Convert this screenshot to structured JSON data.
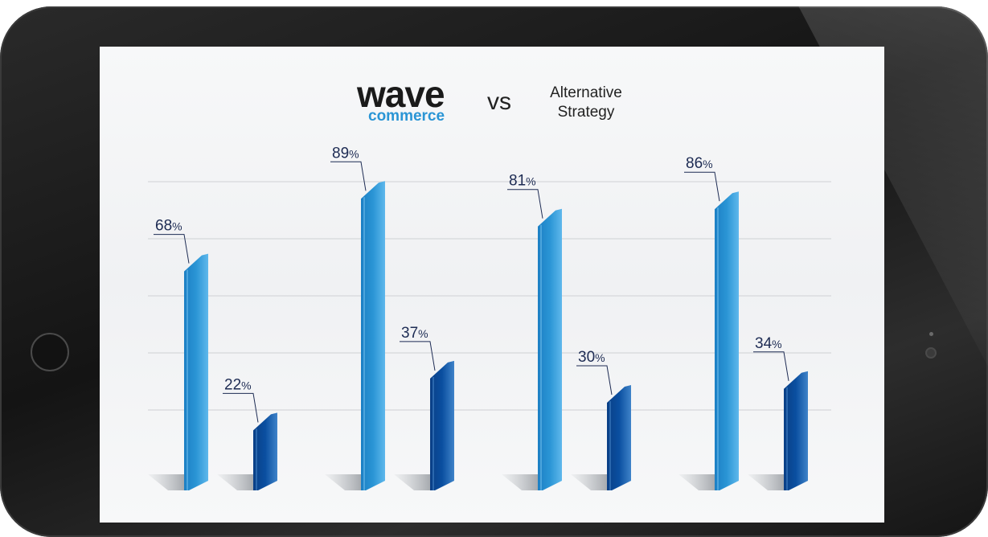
{
  "title": {
    "brand_main": "wave",
    "brand_sub": "commerce",
    "vs": "vs",
    "alt_line1": "Alternative",
    "alt_line2": "Strategy"
  },
  "chart_data": {
    "type": "bar",
    "categories": [
      "",
      "",
      "",
      ""
    ],
    "series": [
      {
        "name": "wave commerce",
        "values": [
          68,
          89,
          81,
          86
        ],
        "labels": [
          "68",
          "89",
          "81",
          "86"
        ]
      },
      {
        "name": "Alternative Strategy",
        "values": [
          22,
          37,
          30,
          34
        ],
        "labels": [
          "22",
          "37",
          "30",
          "34"
        ]
      }
    ],
    "unit": "%",
    "ylim": [
      0,
      100
    ],
    "grid": true,
    "colors": {
      "series1": "#2a95d5",
      "series2": "#0a4fa0",
      "label": "#1d2b53",
      "grid": "#d6d8db"
    }
  }
}
